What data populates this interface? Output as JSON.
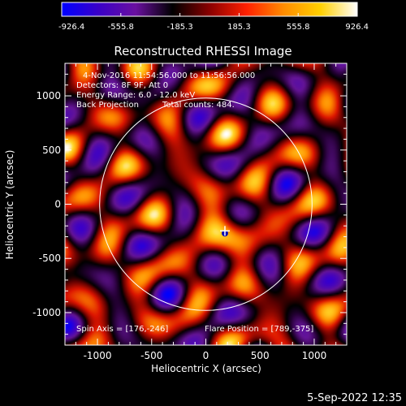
{
  "colorbar": {
    "tick_labels": [
      "-926.4",
      "-555.8",
      "-185.3",
      "185.3",
      "555.8",
      "926.4"
    ],
    "min": -926.4,
    "max": 926.4,
    "colors": [
      "#0000ff",
      "#3a00c8",
      "#6a10a0",
      "#000000",
      "#8a0000",
      "#ff2000",
      "#ff8c00",
      "#ffd000",
      "#ffffff"
    ]
  },
  "chart_data": {
    "type": "heatmap",
    "title": "Reconstructed RHESSI Image",
    "xlabel": "Heliocentric X (arcsec)",
    "ylabel": "Heliocentric Y (arcsec)",
    "xlim": [
      -1300,
      1300
    ],
    "ylim": [
      -1300,
      1300
    ],
    "x_ticks": [
      -1000,
      -500,
      0,
      500,
      1000
    ],
    "y_ticks": [
      -1000,
      -500,
      0,
      500,
      1000
    ],
    "x_tick_labels": [
      "-1000",
      "-500",
      "0",
      "500",
      "1000"
    ],
    "y_tick_labels": [
      "-1000",
      "-500",
      "0",
      "500",
      "1000"
    ],
    "solar_limb_radius_arcsec": 980,
    "flare_marker": {
      "x": 176,
      "y": -246
    },
    "annotations": {
      "time_range": "4-Nov-2016 11:54:56.000 to 11:56:56.000",
      "detectors": "Detectors: 8F 9F, Att 0",
      "energy_range": "Energy Range: 6.0 - 12.0 keV",
      "method": "Back Projection",
      "total_counts": "Total counts: 484.",
      "spin_axis": "Spin Axis = [176,-246]",
      "flare_position": "Flare Position = [789,-375]"
    },
    "colormap_range": [
      -926.4,
      926.4
    ]
  },
  "footer": {
    "date_stamp": "5-Sep-2022 12:35"
  }
}
